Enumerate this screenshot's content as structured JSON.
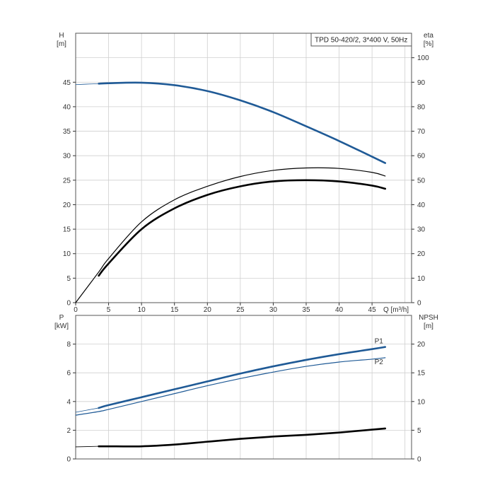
{
  "chart_title": "TPD 50-420/2, 3*400 V, 50Hz",
  "colors": {
    "blue": "#1f5a96",
    "black": "#000000",
    "grid": "#cfcfcf"
  },
  "chart_data": [
    {
      "type": "line",
      "panel": "top",
      "xlabel": "Q [m³/h]",
      "ylabel_left": [
        "H",
        "[m]"
      ],
      "ylabel_right": [
        "eta",
        "[%]"
      ],
      "xlim": [
        0,
        51
      ],
      "ylim_left": [
        0,
        55
      ],
      "ylim_right": [
        0,
        110
      ],
      "xticks": [
        0,
        5,
        10,
        15,
        20,
        25,
        30,
        35,
        40,
        45
      ],
      "yticks_left": [
        0,
        5,
        10,
        15,
        20,
        25,
        30,
        35,
        40,
        45
      ],
      "yticks_right": [
        0,
        10,
        20,
        30,
        40,
        50,
        60,
        70,
        80,
        90,
        100
      ],
      "grid": true,
      "series": [
        {
          "axis": "left",
          "style": "thin-extension",
          "color": "blue",
          "x": [
            0,
            1.5,
            3.5
          ],
          "y": [
            44.5,
            44.6,
            44.7
          ]
        },
        {
          "axis": "left",
          "style": "thick",
          "color": "blue",
          "x": [
            3.5,
            5,
            10,
            15,
            20,
            25,
            30,
            35,
            40,
            45,
            47
          ],
          "y": [
            44.7,
            44.8,
            44.9,
            44.4,
            43.2,
            41.3,
            38.9,
            36.0,
            33.0,
            29.8,
            28.5
          ]
        },
        {
          "axis": "right",
          "style": "thin",
          "color": "black",
          "x": [
            0,
            3.5,
            5,
            10,
            15,
            20,
            25,
            30,
            35,
            40,
            45,
            47
          ],
          "y": [
            0,
            12.5,
            18,
            33,
            42,
            47.5,
            51.5,
            54,
            55,
            54.8,
            53.2,
            51.7
          ]
        },
        {
          "axis": "right",
          "style": "thick",
          "color": "black",
          "x": [
            3.5,
            5,
            10,
            15,
            20,
            25,
            30,
            35,
            40,
            45,
            47
          ],
          "y": [
            11,
            16,
            30,
            38.5,
            44,
            47.5,
            49.5,
            50,
            49.5,
            47.8,
            46.5
          ]
        }
      ]
    },
    {
      "type": "line",
      "panel": "bottom",
      "ylabel_left": [
        "P",
        "[kW]"
      ],
      "ylabel_right": [
        "NPSH",
        "[m]"
      ],
      "xlim": [
        0,
        51
      ],
      "ylim_left": [
        0,
        10
      ],
      "ylim_right": [
        0,
        25
      ],
      "yticks_left": [
        0,
        2,
        4,
        6,
        8
      ],
      "yticks_right": [
        0,
        5,
        10,
        15,
        20
      ],
      "grid": true,
      "series": [
        {
          "name": "P1",
          "axis": "left",
          "style": "thick",
          "color": "blue",
          "x": [
            3.5,
            5,
            10,
            15,
            20,
            25,
            30,
            35,
            40,
            45,
            47
          ],
          "y": [
            3.55,
            3.75,
            4.3,
            4.85,
            5.4,
            5.95,
            6.45,
            6.9,
            7.3,
            7.65,
            7.8
          ]
        },
        {
          "axis": "left",
          "style": "thin-extension",
          "color": "blue",
          "x": [
            0,
            1.5,
            3.5
          ],
          "y": [
            3.25,
            3.38,
            3.55
          ]
        },
        {
          "name": "P2",
          "axis": "left",
          "style": "thin",
          "color": "blue",
          "x": [
            0,
            3.5,
            5,
            10,
            15,
            20,
            25,
            30,
            35,
            40,
            45,
            47
          ],
          "y": [
            3.05,
            3.3,
            3.45,
            4.0,
            4.55,
            5.1,
            5.6,
            6.05,
            6.45,
            6.75,
            6.95,
            7.05
          ]
        },
        {
          "axis": "right",
          "style": "thin-extension",
          "color": "black",
          "x": [
            0,
            3.5
          ],
          "y": [
            2.1,
            2.2
          ]
        },
        {
          "axis": "right",
          "style": "thick",
          "color": "black",
          "x": [
            3.5,
            5,
            10,
            15,
            20,
            25,
            30,
            35,
            40,
            45,
            47
          ],
          "y": [
            2.2,
            2.2,
            2.2,
            2.5,
            3.0,
            3.5,
            3.9,
            4.2,
            4.6,
            5.1,
            5.3
          ]
        }
      ]
    }
  ]
}
